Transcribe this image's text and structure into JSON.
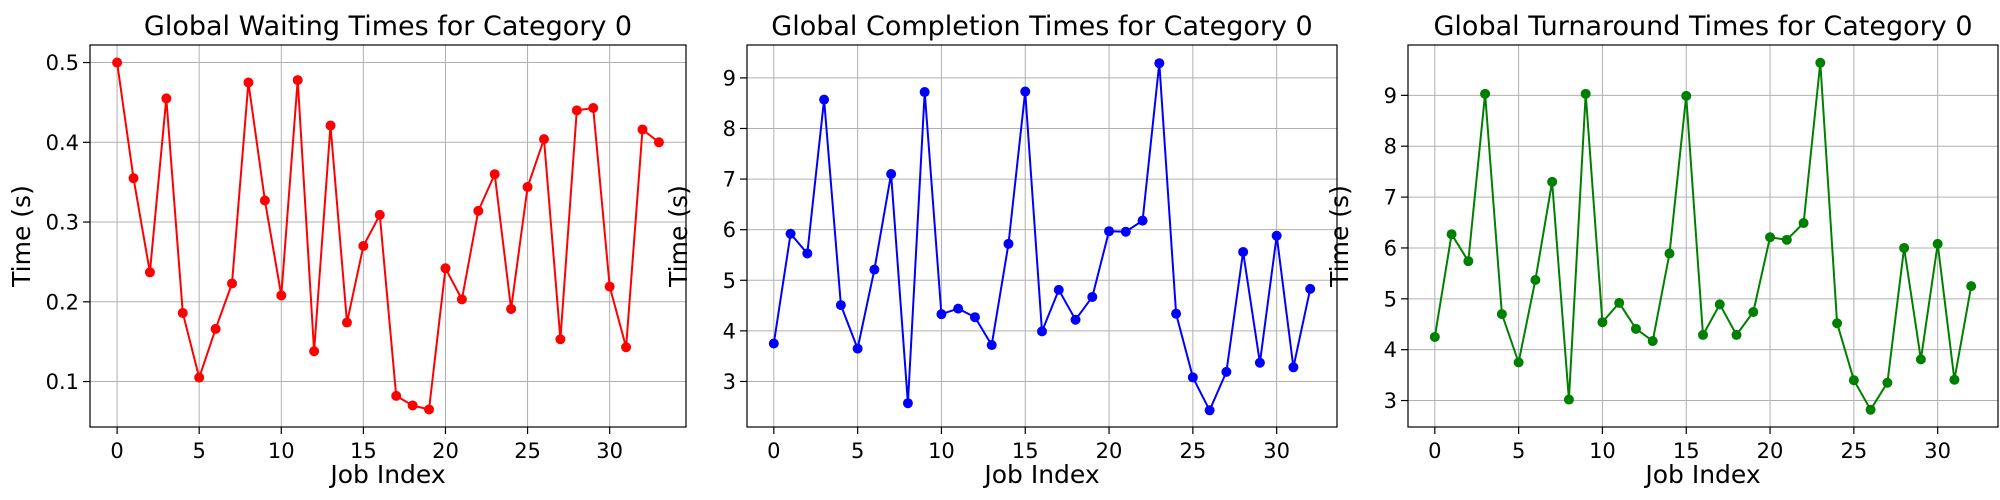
{
  "chart_data": [
    {
      "type": "line",
      "title": "Global Waiting Times for Category 0",
      "xlabel": "Job Index",
      "ylabel": "Time (s)",
      "color": "#ff0000",
      "xlim": [
        -1.65,
        34.65
      ],
      "ylim": [
        0.043,
        0.522
      ],
      "xticks": [
        0,
        5,
        10,
        15,
        20,
        25,
        30
      ],
      "yticks": [
        0.1,
        0.2,
        0.3,
        0.4,
        0.5
      ],
      "ytick_decimals": 1,
      "grid": true,
      "x": [
        0,
        1,
        2,
        3,
        4,
        5,
        6,
        7,
        8,
        9,
        10,
        11,
        12,
        13,
        14,
        15,
        16,
        17,
        18,
        19,
        20,
        21,
        22,
        23,
        24,
        25,
        26,
        27,
        28,
        29,
        30,
        31,
        32,
        33
      ],
      "y": [
        0.5,
        0.355,
        0.237,
        0.455,
        0.186,
        0.105,
        0.166,
        0.223,
        0.475,
        0.327,
        0.208,
        0.478,
        0.138,
        0.421,
        0.174,
        0.27,
        0.309,
        0.082,
        0.07,
        0.065,
        0.242,
        0.203,
        0.314,
        0.36,
        0.191,
        0.344,
        0.404,
        0.153,
        0.44,
        0.443,
        0.219,
        0.143,
        0.416,
        0.4
      ]
    },
    {
      "type": "line",
      "title": "Global Completion Times for Category 0",
      "xlabel": "Job Index",
      "ylabel": "Time (s)",
      "color": "#0000ff",
      "xlim": [
        -1.6,
        33.6
      ],
      "ylim": [
        2.1,
        9.65
      ],
      "xticks": [
        0,
        5,
        10,
        15,
        20,
        25,
        30
      ],
      "yticks": [
        3,
        4,
        5,
        6,
        7,
        8,
        9
      ],
      "ytick_decimals": 0,
      "grid": true,
      "x": [
        0,
        1,
        2,
        3,
        4,
        5,
        6,
        7,
        8,
        9,
        10,
        11,
        12,
        13,
        14,
        15,
        16,
        17,
        18,
        19,
        20,
        21,
        22,
        23,
        24,
        25,
        26,
        27,
        28,
        29,
        30,
        31,
        32
      ],
      "y": [
        3.75,
        5.92,
        5.53,
        8.57,
        4.51,
        3.65,
        5.21,
        7.1,
        2.57,
        8.72,
        4.33,
        4.44,
        4.27,
        3.72,
        5.72,
        8.73,
        3.99,
        4.81,
        4.22,
        4.67,
        5.97,
        5.96,
        6.18,
        9.29,
        4.34,
        3.08,
        2.43,
        3.19,
        5.56,
        3.37,
        5.88,
        3.28,
        4.83
      ]
    },
    {
      "type": "line",
      "title": "Global Turnaround Times for Category 0",
      "xlabel": "Job Index",
      "ylabel": "Time (s)",
      "color": "#008000",
      "xlim": [
        -1.6,
        33.6
      ],
      "ylim": [
        2.48,
        9.99
      ],
      "xticks": [
        0,
        5,
        10,
        15,
        20,
        25,
        30
      ],
      "yticks": [
        3,
        4,
        5,
        6,
        7,
        8,
        9
      ],
      "ytick_decimals": 0,
      "grid": true,
      "x": [
        0,
        1,
        2,
        3,
        4,
        5,
        6,
        7,
        8,
        9,
        10,
        11,
        12,
        13,
        14,
        15,
        16,
        17,
        18,
        19,
        20,
        21,
        22,
        23,
        24,
        25,
        26,
        27,
        28,
        29,
        30,
        31,
        32
      ],
      "y": [
        4.25,
        6.27,
        5.74,
        9.03,
        4.7,
        3.75,
        5.37,
        7.3,
        3.02,
        9.03,
        4.54,
        4.92,
        4.41,
        4.17,
        5.89,
        8.99,
        4.29,
        4.89,
        4.29,
        4.74,
        6.21,
        6.16,
        6.49,
        9.64,
        4.52,
        3.4,
        2.82,
        3.35,
        6.0,
        3.81,
        6.08,
        3.41,
        5.25
      ]
    }
  ]
}
